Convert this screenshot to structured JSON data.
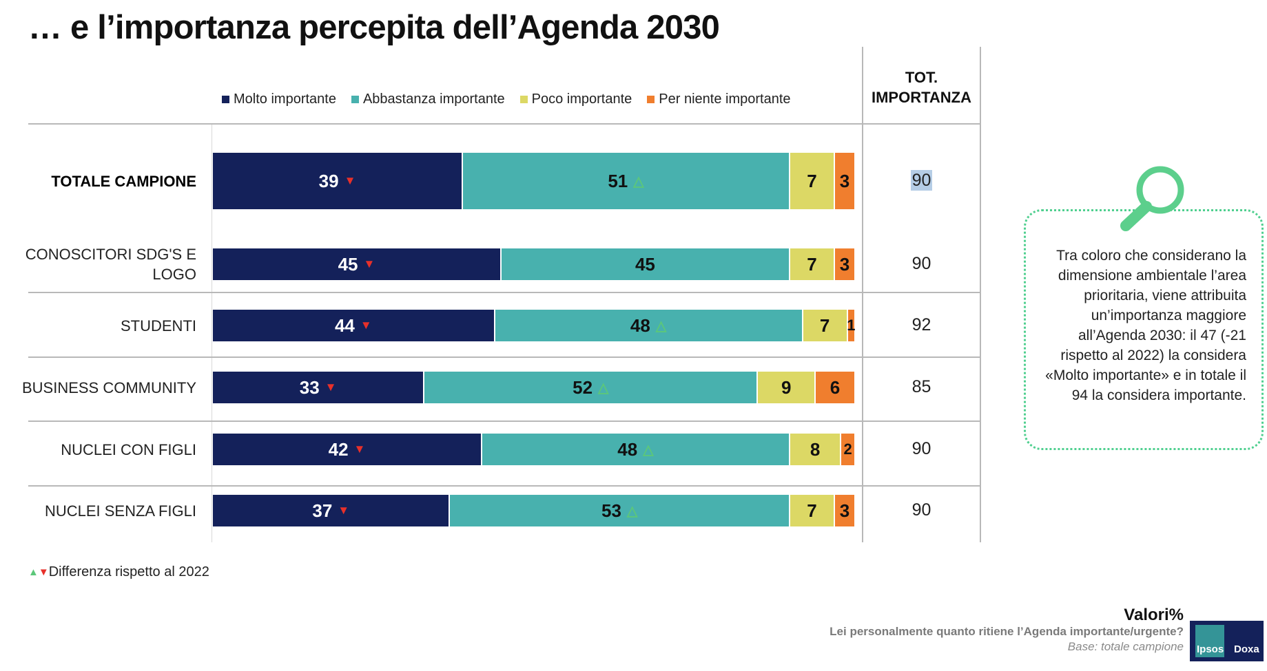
{
  "title": "… e l’importanza percepita dell’Agenda 2030",
  "tot_header": [
    "TOT.",
    "IMPORTANZA"
  ],
  "footnote": "Differenza rispetto al 2022",
  "callout": "Tra coloro che considerano la dimensione ambientale l’area prioritaria, viene attribuita un’importanza maggiore all’Agenda 2030: il 47 (-21 rispetto al 2022) la considera «Molto importante» e in totale il 94 la considera importante.",
  "footer": {
    "valori": "Valori%",
    "question": "Lei personalmente quanto ritiene l’Agenda importante/urgente?",
    "base": "Base: totale campione",
    "logo": [
      "Ipsos",
      "Doxa"
    ]
  },
  "colors": {
    "molto": "#14215a",
    "abbastanza": "#48b1ae",
    "poco": "#dcd865",
    "per_niente": "#f07e2e",
    "down_arrow": "#e8302a",
    "up_arrow": "#5cc77a"
  },
  "chart_data": {
    "type": "bar",
    "orientation": "horizontal-stacked-100",
    "legend_position": "top",
    "series": [
      {
        "name": "Molto importante",
        "values": [
          39,
          45,
          44,
          33,
          42,
          37
        ]
      },
      {
        "name": "Abbastanza importante",
        "values": [
          51,
          45,
          48,
          52,
          48,
          53
        ]
      },
      {
        "name": "Poco importante",
        "values": [
          7,
          7,
          7,
          9,
          8,
          7
        ]
      },
      {
        "name": "Per niente importante",
        "values": [
          3,
          3,
          1,
          6,
          2,
          3
        ]
      }
    ],
    "categories": [
      "TOTALE CAMPIONE",
      "CONOSCITORI SDG'S E LOGO",
      "STUDENTI",
      "BUSINESS COMMUNITY",
      "NUCLEI CON FIGLI",
      "NUCLEI SENZA FIGLI"
    ],
    "tot_importanza": [
      90,
      90,
      92,
      85,
      90,
      90
    ],
    "change_vs_2022": {
      "Molto importante": [
        "down",
        "down",
        "down",
        "down",
        "down",
        "down"
      ],
      "Abbastanza importante": [
        "up",
        null,
        "up",
        "up",
        "up",
        "up"
      ]
    }
  }
}
